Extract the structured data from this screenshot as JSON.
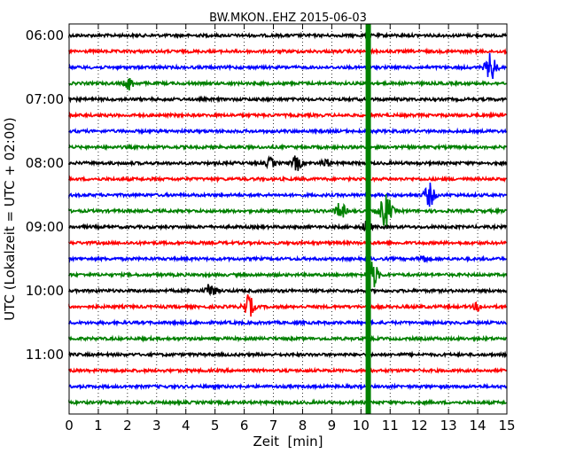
{
  "chart_data": {
    "type": "line",
    "title": "BW.MKON..EHZ 2015-06-03",
    "xlabel": "Zeit  [min]",
    "ylabel": "UTC (Lokalzeit = UTC + 02:00)",
    "xlim": [
      0,
      15
    ],
    "x_ticks": [
      "0",
      "1",
      "2",
      "3",
      "4",
      "5",
      "6",
      "7",
      "8",
      "9",
      "10",
      "11",
      "12",
      "13",
      "14",
      "15"
    ],
    "y_ticks": [
      {
        "label": "06:00",
        "trace": 0
      },
      {
        "label": "07:00",
        "trace": 4
      },
      {
        "label": "08:00",
        "trace": 8
      },
      {
        "label": "09:00",
        "trace": 12
      },
      {
        "label": "10:00",
        "trace": 16
      },
      {
        "label": "11:00",
        "trace": 20
      }
    ],
    "grid": "vertical dotted",
    "trace_colors": [
      "#000000",
      "#ff0000",
      "#0000ff",
      "#008000"
    ],
    "trace_count": 24,
    "first_trace_start": "06:00",
    "trace_length_min": 15,
    "highlight": {
      "x": 10.25,
      "color": "#008000"
    },
    "events": [
      {
        "trace": 2,
        "x": 14.45,
        "amp": 1.1
      },
      {
        "trace": 3,
        "x": 2.05,
        "amp": 0.5
      },
      {
        "trace": 8,
        "x": 6.9,
        "amp": 0.4
      },
      {
        "trace": 8,
        "x": 7.8,
        "amp": 0.6
      },
      {
        "trace": 8,
        "x": 8.8,
        "amp": 0.3
      },
      {
        "trace": 10,
        "x": 12.35,
        "amp": 0.9
      },
      {
        "trace": 11,
        "x": 9.3,
        "amp": 0.7
      },
      {
        "trace": 11,
        "x": 10.85,
        "amp": 1.4
      },
      {
        "trace": 12,
        "x": 10.2,
        "amp": 0.5
      },
      {
        "trace": 14,
        "x": 12.1,
        "amp": 0.3
      },
      {
        "trace": 15,
        "x": 10.4,
        "amp": 1.1
      },
      {
        "trace": 16,
        "x": 4.85,
        "amp": 0.6
      },
      {
        "trace": 17,
        "x": 6.15,
        "amp": 0.9
      },
      {
        "trace": 17,
        "x": 14.0,
        "amp": 0.3
      }
    ]
  }
}
